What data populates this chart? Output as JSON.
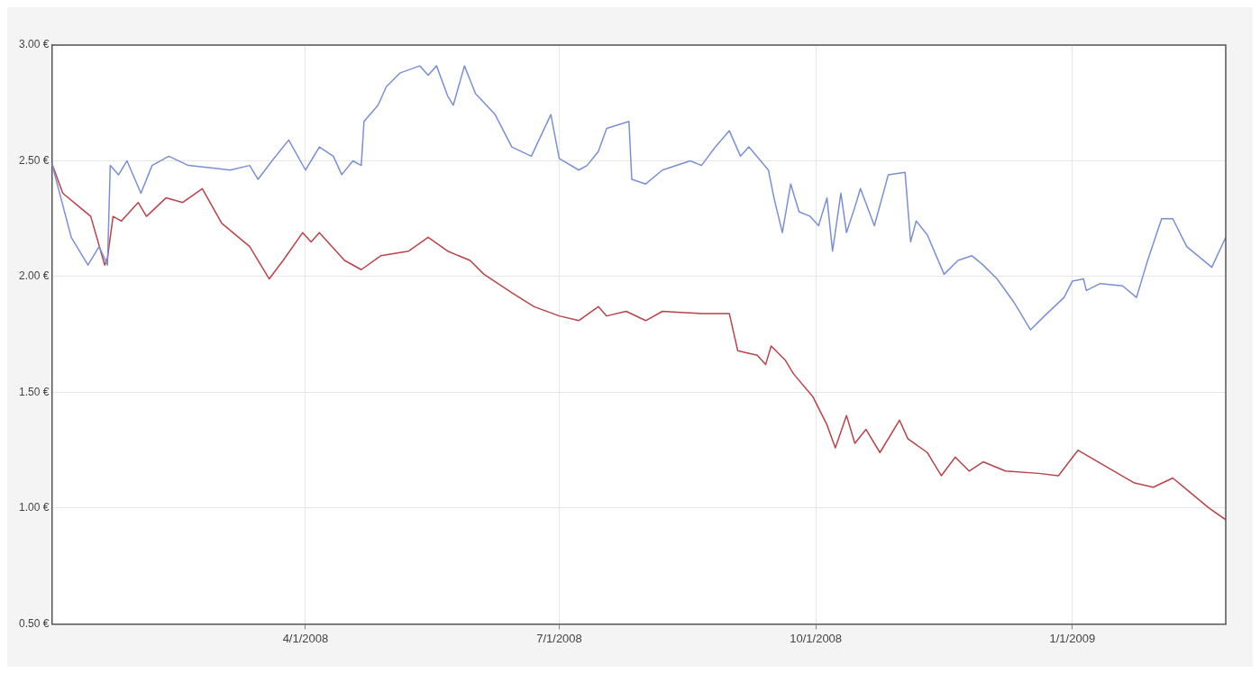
{
  "chart_data": {
    "type": "line",
    "xlim": [
      "2008-01-01",
      "2009-02-25"
    ],
    "xticks": [
      {
        "value": "2008-04-01",
        "label": "4/1/2008"
      },
      {
        "value": "2008-07-01",
        "label": "7/1/2008"
      },
      {
        "value": "2008-10-01",
        "label": "10/1/2008"
      },
      {
        "value": "2009-01-01",
        "label": "1/1/2009"
      }
    ],
    "ylim": [
      0.5,
      3.0
    ],
    "yticks": [
      {
        "value": 0.5,
        "label": "0.50 €"
      },
      {
        "value": 1.0,
        "label": "1.00 €"
      },
      {
        "value": 1.5,
        "label": "1.50 €"
      },
      {
        "value": 2.0,
        "label": "2.00 €"
      },
      {
        "value": 2.5,
        "label": "2.50 €"
      },
      {
        "value": 3.0,
        "label": "3.00 €"
      }
    ],
    "grid": true,
    "legend": false,
    "marker": "none",
    "line_style": "solid",
    "series": [
      {
        "color": "#7b8fd6",
        "x": [
          "2008-01-01",
          "2008-01-08",
          "2008-01-14",
          "2008-01-18",
          "2008-01-21",
          "2008-01-22",
          "2008-01-25",
          "2008-01-28",
          "2008-02-02",
          "2008-02-06",
          "2008-02-12",
          "2008-02-19",
          "2008-02-27",
          "2008-03-05",
          "2008-03-12",
          "2008-03-15",
          "2008-03-20",
          "2008-03-26",
          "2008-04-01",
          "2008-04-06",
          "2008-04-11",
          "2008-04-14",
          "2008-04-18",
          "2008-04-21",
          "2008-04-22",
          "2008-04-27",
          "2008-04-30",
          "2008-05-05",
          "2008-05-12",
          "2008-05-15",
          "2008-05-18",
          "2008-05-22",
          "2008-05-24",
          "2008-05-28",
          "2008-06-01",
          "2008-06-08",
          "2008-06-14",
          "2008-06-21",
          "2008-06-28",
          "2008-07-01",
          "2008-07-08",
          "2008-07-11",
          "2008-07-15",
          "2008-07-18",
          "2008-07-26",
          "2008-07-27",
          "2008-08-01",
          "2008-08-07",
          "2008-08-17",
          "2008-08-21",
          "2008-08-26",
          "2008-08-31",
          "2008-09-04",
          "2008-09-07",
          "2008-09-14",
          "2008-09-16",
          "2008-09-19",
          "2008-09-22",
          "2008-09-25",
          "2008-09-29",
          "2008-10-02",
          "2008-10-05",
          "2008-10-07",
          "2008-10-10",
          "2008-10-12",
          "2008-10-15",
          "2008-10-17",
          "2008-10-22",
          "2008-10-27",
          "2008-11-02",
          "2008-11-04",
          "2008-11-06",
          "2008-11-10",
          "2008-11-16",
          "2008-11-21",
          "2008-11-26",
          "2008-11-30",
          "2008-12-05",
          "2008-12-11",
          "2008-12-17",
          "2008-12-22",
          "2008-12-29",
          "2009-01-01",
          "2009-01-05",
          "2009-01-06",
          "2009-01-11",
          "2009-01-19",
          "2009-01-24",
          "2009-01-28",
          "2009-02-02",
          "2009-02-06",
          "2009-02-11",
          "2009-02-15",
          "2009-02-20",
          "2009-02-25"
        ],
        "values": [
          2.49,
          2.17,
          2.05,
          2.13,
          2.05,
          2.48,
          2.44,
          2.5,
          2.36,
          2.48,
          2.52,
          2.48,
          2.47,
          2.46,
          2.48,
          2.42,
          2.5,
          2.59,
          2.46,
          2.56,
          2.52,
          2.44,
          2.5,
          2.48,
          2.67,
          2.74,
          2.82,
          2.88,
          2.91,
          2.87,
          2.91,
          2.78,
          2.74,
          2.91,
          2.79,
          2.7,
          2.56,
          2.52,
          2.7,
          2.51,
          2.46,
          2.48,
          2.54,
          2.64,
          2.67,
          2.42,
          2.4,
          2.46,
          2.5,
          2.48,
          2.56,
          2.63,
          2.52,
          2.56,
          2.46,
          2.34,
          2.19,
          2.4,
          2.28,
          2.26,
          2.22,
          2.34,
          2.11,
          2.36,
          2.19,
          2.3,
          2.38,
          2.22,
          2.44,
          2.45,
          2.15,
          2.24,
          2.18,
          2.01,
          2.07,
          2.09,
          2.05,
          1.99,
          1.89,
          1.77,
          1.83,
          1.91,
          1.98,
          1.99,
          1.94,
          1.97,
          1.96,
          1.91,
          2.07,
          2.25,
          2.25,
          2.13,
          2.09,
          2.04,
          2.17
        ]
      },
      {
        "color": "#b8434a",
        "x": [
          "2008-01-01",
          "2008-01-05",
          "2008-01-11",
          "2008-01-15",
          "2008-01-20",
          "2008-01-21",
          "2008-01-23",
          "2008-01-26",
          "2008-02-01",
          "2008-02-04",
          "2008-02-11",
          "2008-02-17",
          "2008-02-24",
          "2008-03-02",
          "2008-03-12",
          "2008-03-19",
          "2008-03-24",
          "2008-03-31",
          "2008-04-03",
          "2008-04-06",
          "2008-04-15",
          "2008-04-21",
          "2008-04-28",
          "2008-05-08",
          "2008-05-15",
          "2008-05-22",
          "2008-05-30",
          "2008-06-04",
          "2008-06-14",
          "2008-06-22",
          "2008-07-01",
          "2008-07-08",
          "2008-07-15",
          "2008-07-18",
          "2008-07-25",
          "2008-08-01",
          "2008-08-07",
          "2008-08-21",
          "2008-08-31",
          "2008-09-03",
          "2008-09-10",
          "2008-09-13",
          "2008-09-15",
          "2008-09-20",
          "2008-09-23",
          "2008-09-30",
          "2008-10-05",
          "2008-10-08",
          "2008-10-12",
          "2008-10-15",
          "2008-10-19",
          "2008-10-24",
          "2008-10-31",
          "2008-11-03",
          "2008-11-10",
          "2008-11-15",
          "2008-11-20",
          "2008-11-25",
          "2008-11-30",
          "2008-12-08",
          "2008-12-20",
          "2008-12-27",
          "2009-01-03",
          "2009-01-13",
          "2009-01-23",
          "2009-01-30",
          "2009-02-06",
          "2009-02-12",
          "2009-02-19",
          "2009-02-25"
        ],
        "values": [
          2.49,
          2.36,
          2.3,
          2.26,
          2.05,
          2.08,
          2.26,
          2.24,
          2.32,
          2.26,
          2.34,
          2.32,
          2.38,
          2.23,
          2.13,
          1.99,
          2.07,
          2.19,
          2.15,
          2.19,
          2.07,
          2.03,
          2.09,
          2.11,
          2.17,
          2.11,
          2.07,
          2.01,
          1.93,
          1.87,
          1.83,
          1.81,
          1.87,
          1.83,
          1.85,
          1.81,
          1.85,
          1.84,
          1.84,
          1.68,
          1.66,
          1.62,
          1.7,
          1.64,
          1.58,
          1.48,
          1.36,
          1.26,
          1.4,
          1.28,
          1.34,
          1.24,
          1.38,
          1.3,
          1.24,
          1.14,
          1.22,
          1.16,
          1.2,
          1.16,
          1.15,
          1.14,
          1.25,
          1.18,
          1.11,
          1.09,
          1.13,
          1.07,
          1.0,
          0.95
        ]
      }
    ]
  }
}
